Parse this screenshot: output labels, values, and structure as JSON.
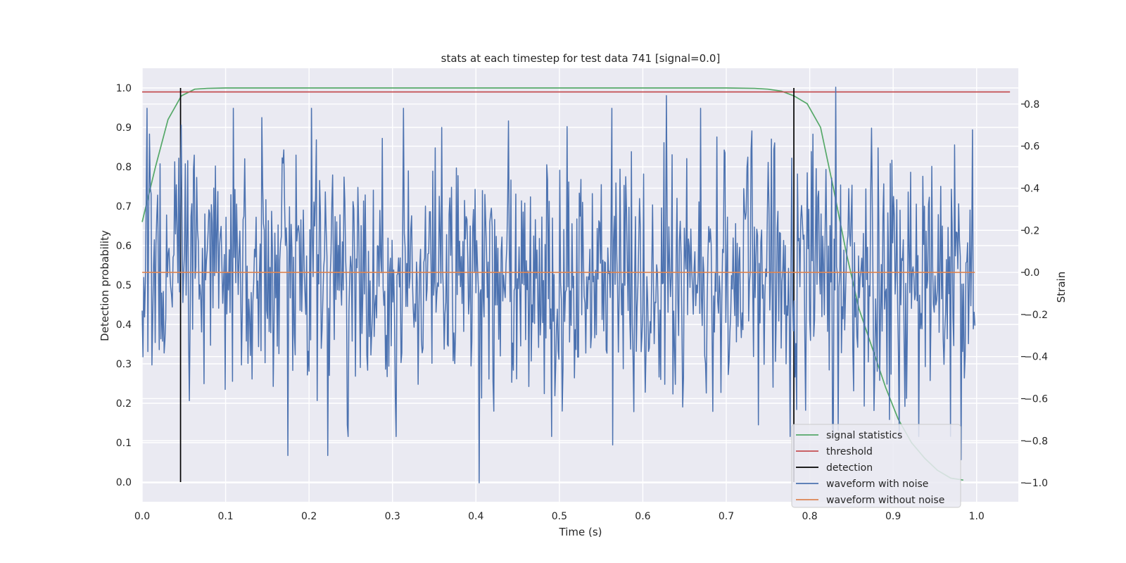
{
  "chart_data": {
    "type": "line",
    "title": "stats at each timestep for test data 741 [signal=0.0]",
    "xlabel": "Time (s)",
    "ylabel_left": "Detection probability",
    "ylabel_right": "Strain",
    "xlim": [
      0.0,
      1.05
    ],
    "ylim_left": [
      -0.05,
      1.05
    ],
    "ylim_right": [
      -1.09,
      0.97
    ],
    "xticks": [
      "0.0",
      "0.1",
      "0.2",
      "0.3",
      "0.4",
      "0.5",
      "0.6",
      "0.7",
      "0.8",
      "0.9",
      "1.0"
    ],
    "yticks_left": [
      "0.0",
      "0.1",
      "0.2",
      "0.3",
      "0.4",
      "0.5",
      "0.6",
      "0.7",
      "0.8",
      "0.9",
      "1.0"
    ],
    "yticks_right": [
      "−1.0",
      "−0.8",
      "−0.6",
      "−0.4",
      "−0.2",
      "0.0",
      "0.2",
      "0.4",
      "0.6",
      "0.8"
    ],
    "grid": true,
    "legend_position": "lower-right",
    "legend": [
      {
        "label": "signal statistics",
        "color": "#55a868"
      },
      {
        "label": "threshold",
        "color": "#c44e52"
      },
      {
        "label": "detection",
        "color": "#000000"
      },
      {
        "label": "waveform with noise",
        "color": "#4c72b0"
      },
      {
        "label": "waveform without noise",
        "color": "#dd8452"
      }
    ],
    "series": {
      "signal_statistics": {
        "color": "#55a868",
        "axis": "left",
        "x": [
          0.0,
          0.016,
          0.031,
          0.047,
          0.063,
          0.078,
          0.1,
          0.2,
          0.3,
          0.4,
          0.5,
          0.6,
          0.7,
          0.734,
          0.75,
          0.766,
          0.781,
          0.797,
          0.813,
          0.828,
          0.844,
          0.859,
          0.875,
          0.891,
          0.906,
          0.922,
          0.938,
          0.953,
          0.969,
          0.984
        ],
        "y": [
          0.66,
          0.8,
          0.92,
          0.98,
          0.997,
          0.999,
          1.0,
          1.0,
          1.0,
          1.0,
          1.0,
          1.0,
          1.0,
          0.999,
          0.997,
          0.992,
          0.98,
          0.96,
          0.9,
          0.75,
          0.58,
          0.44,
          0.34,
          0.24,
          0.16,
          0.1,
          0.06,
          0.03,
          0.01,
          0.005
        ]
      },
      "threshold": {
        "color": "#c44e52",
        "axis": "left",
        "y": 0.99,
        "x_range": [
          0.0,
          1.04
        ]
      },
      "detection": {
        "color": "#000000",
        "axis": "left",
        "x": [
          0.046,
          0.781
        ],
        "y_range": [
          0.0,
          1.0
        ]
      },
      "waveform_with_noise": {
        "color": "#4c72b0",
        "axis": "right",
        "x_range": [
          0.0,
          0.998
        ],
        "n_points": 1024,
        "approx_std": 0.3,
        "peaks": [
          {
            "x": 0.047,
            "y": 0.7
          },
          {
            "x": 0.175,
            "y": -0.87
          },
          {
            "x": 0.222,
            "y": -0.87
          },
          {
            "x": 0.404,
            "y": -1.0
          },
          {
            "x": 0.564,
            "y": -0.82
          },
          {
            "x": 0.628,
            "y": 0.84
          },
          {
            "x": 0.831,
            "y": 0.88
          },
          {
            "x": 0.981,
            "y": -0.89
          }
        ]
      },
      "waveform_without_noise": {
        "color": "#dd8452",
        "axis": "right",
        "y": 0.0,
        "x_range": [
          0.0,
          0.998
        ]
      }
    }
  }
}
